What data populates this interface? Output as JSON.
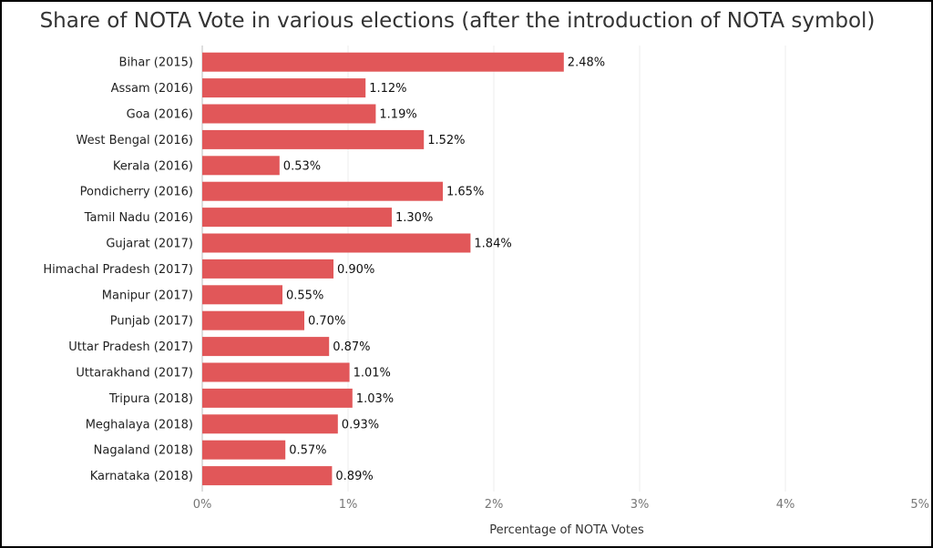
{
  "chart_data": {
    "type": "bar",
    "orientation": "horizontal",
    "title": "Share of NOTA Vote in various elections (after the introduction of NOTA symbol)",
    "xlabel": "Percentage of NOTA Votes",
    "ylabel": "",
    "xlim": [
      0,
      5
    ],
    "ticks": [
      0,
      1,
      2,
      3,
      4,
      5
    ],
    "tick_labels": [
      "0%",
      "1%",
      "2%",
      "3%",
      "4%",
      "5%"
    ],
    "grid": true,
    "legend": "none",
    "bar_color": "#e15759",
    "categories": [
      "Bihar (2015)",
      "Assam (2016)",
      "Goa (2016)",
      "West Bengal (2016)",
      "Kerala (2016)",
      "Pondicherry (2016)",
      "Tamil Nadu (2016)",
      "Gujarat (2017)",
      "Himachal Pradesh (2017)",
      "Manipur (2017)",
      "Punjab (2017)",
      "Uttar Pradesh (2017)",
      "Uttarakhand (2017)",
      "Tripura (2018)",
      "Meghalaya (2018)",
      "Nagaland (2018)",
      "Karnataka (2018)"
    ],
    "values": [
      2.48,
      1.12,
      1.19,
      1.52,
      0.53,
      1.65,
      1.3,
      1.84,
      0.9,
      0.55,
      0.7,
      0.87,
      1.01,
      1.03,
      0.93,
      0.57,
      0.89
    ],
    "value_labels": [
      "2.48%",
      "1.12%",
      "1.19%",
      "1.52%",
      "0.53%",
      "1.65%",
      "1.30%",
      "1.84%",
      "0.90%",
      "0.55%",
      "0.70%",
      "0.87%",
      "1.01%",
      "1.03%",
      "0.93%",
      "0.57%",
      "0.89%"
    ]
  }
}
